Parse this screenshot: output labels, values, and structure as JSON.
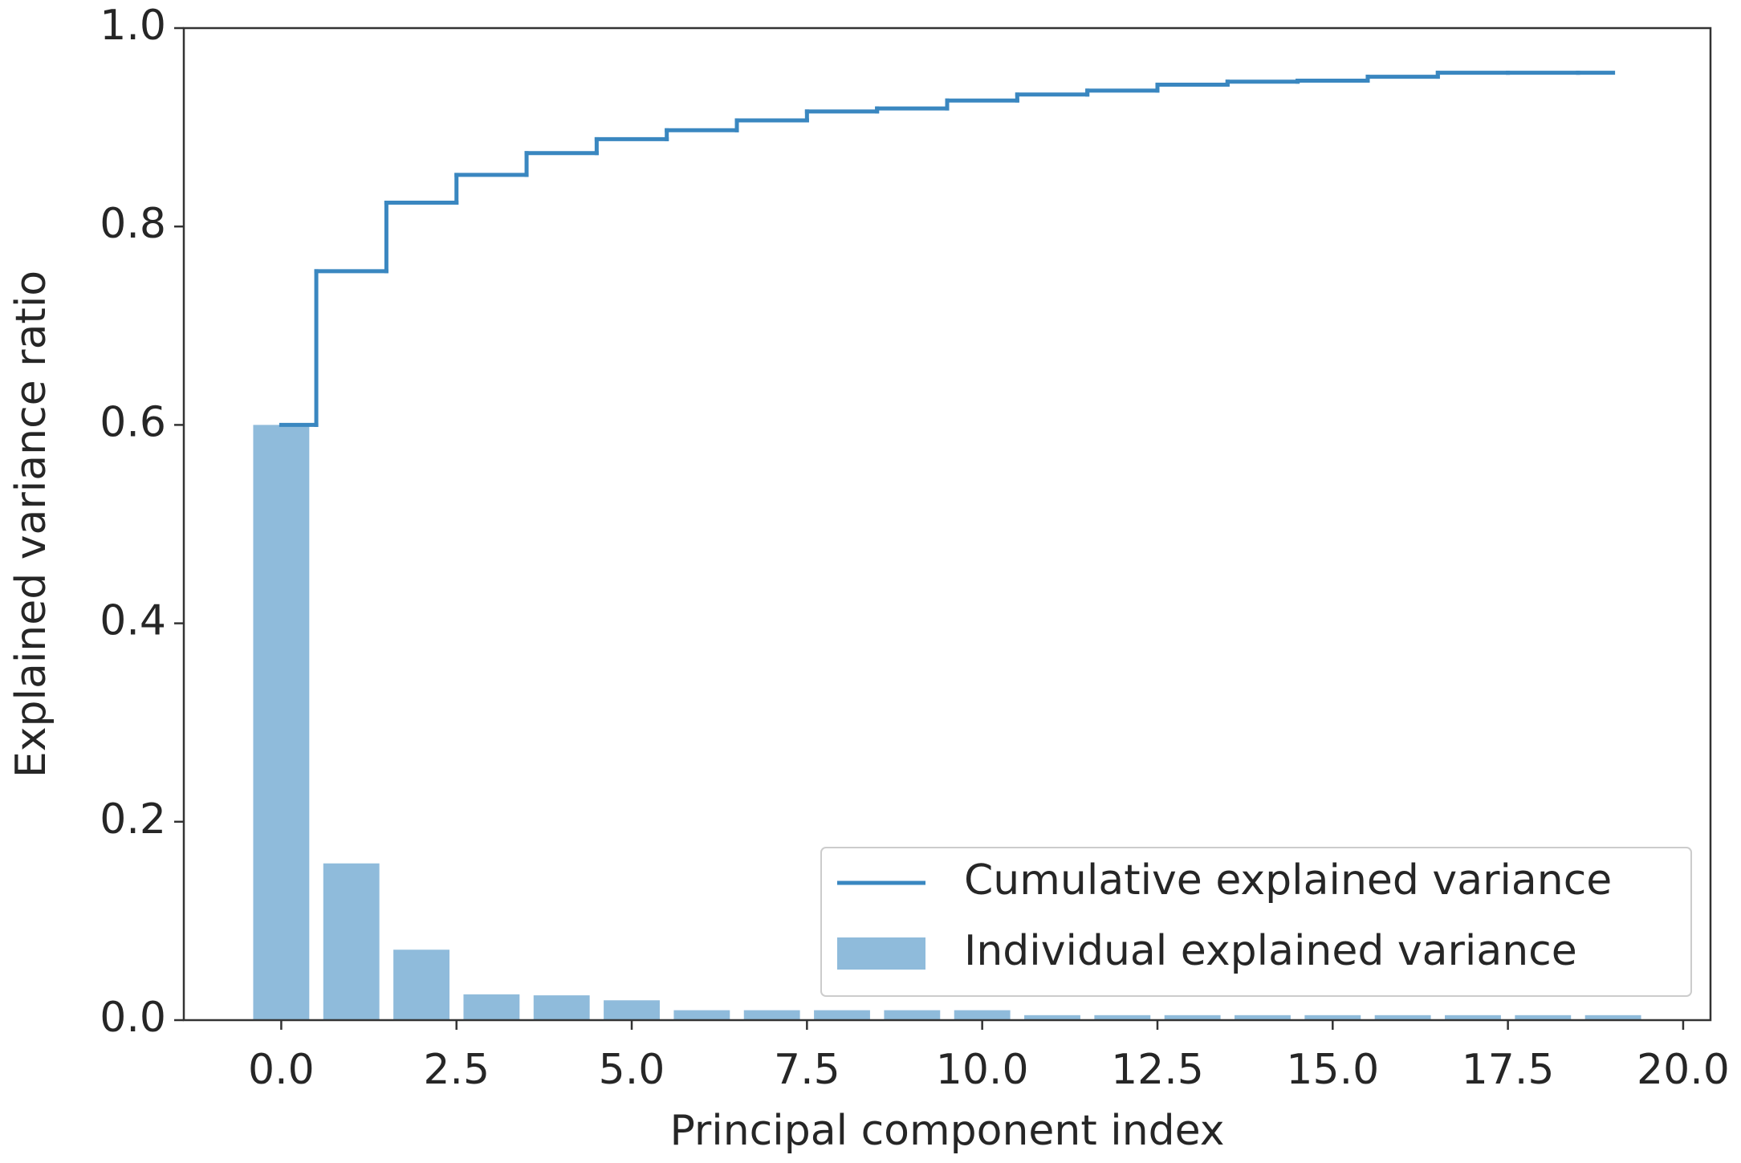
{
  "chart_data": {
    "type": "bar",
    "xlabel": "Principal component index",
    "ylabel": "Explained variance ratio",
    "x": [
      0,
      1,
      2,
      3,
      4,
      5,
      6,
      7,
      8,
      9,
      10,
      11,
      12,
      13,
      14,
      15,
      16,
      17,
      18,
      19
    ],
    "series": [
      {
        "name": "Cumulative explained variance",
        "type": "step",
        "color": "#3a87c0",
        "values": [
          0.6,
          0.755,
          0.824,
          0.852,
          0.874,
          0.888,
          0.897,
          0.907,
          0.916,
          0.919,
          0.927,
          0.933,
          0.937,
          0.943,
          0.946,
          0.947,
          0.951,
          0.955,
          0.955,
          0.955
        ]
      },
      {
        "name": "Individual explained variance",
        "type": "bar",
        "color": "#8fbbdb",
        "values": [
          0.6,
          0.158,
          0.071,
          0.026,
          0.025,
          0.02,
          0.01,
          0.01,
          0.01,
          0.01,
          0.01,
          0.005,
          0.005,
          0.005,
          0.005,
          0.005,
          0.005,
          0.005,
          0.005,
          0.005
        ]
      }
    ],
    "xlim": [
      -1.39,
      20.39
    ],
    "ylim": [
      0,
      1.0
    ],
    "xticks": [
      {
        "value": 0,
        "label": "0.0"
      },
      {
        "value": 2.5,
        "label": "2.5"
      },
      {
        "value": 5,
        "label": "5.0"
      },
      {
        "value": 7.5,
        "label": "7.5"
      },
      {
        "value": 10,
        "label": "10.0"
      },
      {
        "value": 12.5,
        "label": "12.5"
      },
      {
        "value": 15,
        "label": "15.0"
      },
      {
        "value": 17.5,
        "label": "17.5"
      },
      {
        "value": 20,
        "label": "20.0"
      }
    ],
    "yticks": [
      {
        "value": 0,
        "label": "0.0"
      },
      {
        "value": 0.2,
        "label": "0.2"
      },
      {
        "value": 0.4,
        "label": "0.4"
      },
      {
        "value": 0.6,
        "label": "0.6"
      },
      {
        "value": 0.8,
        "label": "0.8"
      },
      {
        "value": 1.0,
        "label": "1.0"
      }
    ],
    "legend": "lower right"
  }
}
